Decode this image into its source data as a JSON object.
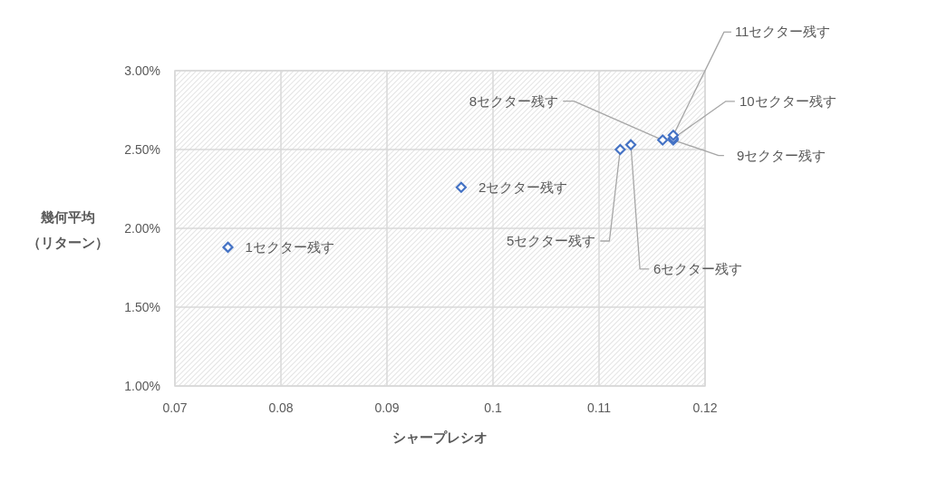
{
  "chart_data": {
    "type": "scatter",
    "xlabel": "シャープレシオ",
    "ylabel": "幾何平均（リターン）",
    "x": [
      0.075,
      0.097,
      0.112,
      0.113,
      0.116,
      0.117,
      0.117,
      0.117
    ],
    "values": [
      1.88,
      2.26,
      2.5,
      2.53,
      2.56,
      2.56,
      2.57,
      2.59
    ],
    "color": "#4472c4",
    "marker": "diamond",
    "grid": true,
    "xlim": [
      0.07,
      0.12
    ],
    "xticks": [
      0.07,
      0.08,
      0.09,
      0.1,
      0.11,
      0.12
    ],
    "ylim": [
      1,
      3
    ],
    "yticks": [
      {
        "value": 1,
        "label": "1.00%"
      },
      {
        "value": 1.5,
        "label": "1.50%"
      },
      {
        "value": 2,
        "label": "2.00%"
      },
      {
        "value": 2.5,
        "label": "2.50%"
      },
      {
        "value": 3,
        "label": "3.00%"
      }
    ],
    "annotations": [
      {
        "text": "1セクター残す",
        "x": 0.075,
        "y": 1.88
      },
      {
        "text": "2セクター残す",
        "x": 0.097,
        "y": 2.26
      },
      {
        "text": "5セクター残す",
        "x": 0.112,
        "y": 2.5
      },
      {
        "text": "6セクター残す",
        "x": 0.113,
        "y": 2.53
      },
      {
        "text": "8セクター残す",
        "x": 0.116,
        "y": 2.56
      },
      {
        "text": "9セクター残す",
        "x": 0.117,
        "y": 2.56
      },
      {
        "text": "10セクター残す",
        "x": 0.117,
        "y": 2.57
      },
      {
        "text": "11セクター残す",
        "x": 0.117,
        "y": 2.59
      }
    ]
  }
}
